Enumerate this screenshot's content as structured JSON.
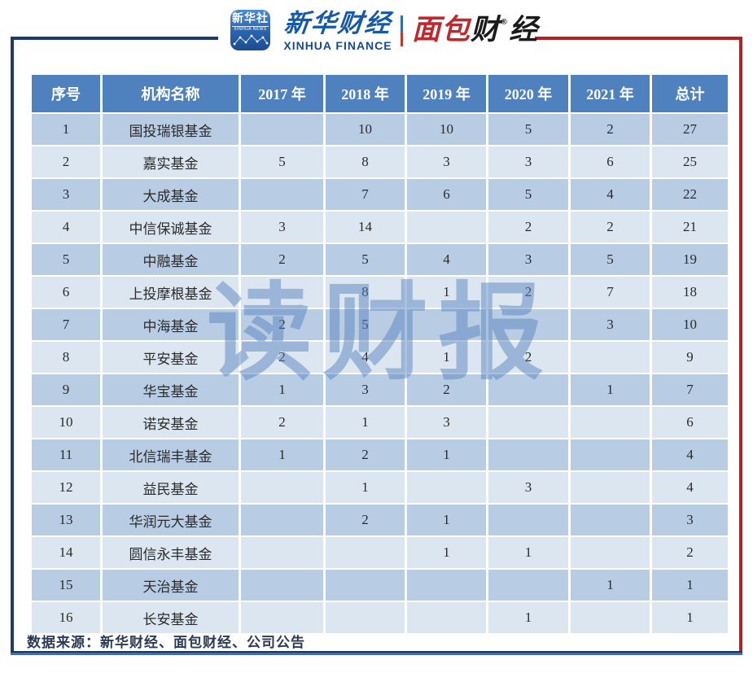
{
  "brand": {
    "xinhua_icon": {
      "title": "新华社",
      "subtitle": "XINHUA NEWS"
    },
    "xinhua_finance": {
      "cn": "新华财经",
      "en": "XINHUA FINANCE"
    },
    "mianbao": {
      "red": "面包",
      "black1": "财",
      "reg": "®",
      "black2": "经"
    }
  },
  "watermark": {
    "text": "读财报"
  },
  "chart_data": {
    "type": "table",
    "columns": [
      "序号",
      "机构名称",
      "2017 年",
      "2018 年",
      "2019 年",
      "2020 年",
      "2021 年",
      "总计"
    ],
    "rows": [
      [
        "1",
        "国投瑞银基金",
        "",
        "10",
        "10",
        "5",
        "2",
        "27"
      ],
      [
        "2",
        "嘉实基金",
        "5",
        "8",
        "3",
        "3",
        "6",
        "25"
      ],
      [
        "3",
        "大成基金",
        "",
        "7",
        "6",
        "5",
        "4",
        "22"
      ],
      [
        "4",
        "中信保诚基金",
        "3",
        "14",
        "",
        "2",
        "2",
        "21"
      ],
      [
        "5",
        "中融基金",
        "2",
        "5",
        "4",
        "3",
        "5",
        "19"
      ],
      [
        "6",
        "上投摩根基金",
        "",
        "8",
        "1",
        "2",
        "7",
        "18"
      ],
      [
        "7",
        "中海基金",
        "2",
        "5",
        "",
        "",
        "3",
        "10"
      ],
      [
        "8",
        "平安基金",
        "2",
        "4",
        "1",
        "2",
        "",
        "9"
      ],
      [
        "9",
        "华宝基金",
        "1",
        "3",
        "2",
        "",
        "1",
        "7"
      ],
      [
        "10",
        "诺安基金",
        "2",
        "1",
        "3",
        "",
        "",
        "6"
      ],
      [
        "11",
        "北信瑞丰基金",
        "1",
        "2",
        "1",
        "",
        "",
        "4"
      ],
      [
        "12",
        "益民基金",
        "",
        "1",
        "",
        "3",
        "",
        "4"
      ],
      [
        "13",
        "华润元大基金",
        "",
        "2",
        "1",
        "",
        "",
        "3"
      ],
      [
        "14",
        "圆信永丰基金",
        "",
        "",
        "1",
        "1",
        "",
        "2"
      ],
      [
        "15",
        "天治基金",
        "",
        "",
        "",
        "",
        "1",
        "1"
      ],
      [
        "16",
        "长安基金",
        "",
        "",
        "",
        "1",
        "",
        "1"
      ]
    ]
  },
  "footer": {
    "source": "数据来源：新华财经、面包财经、公司公告"
  },
  "colors": {
    "frame_navy": "#1f3c68",
    "frame_red": "#b32025",
    "header_bg": "#4e81bd",
    "row_dark": "#b8cce4",
    "row_light": "#dce6f1",
    "watermark_blue": "#5884be"
  }
}
